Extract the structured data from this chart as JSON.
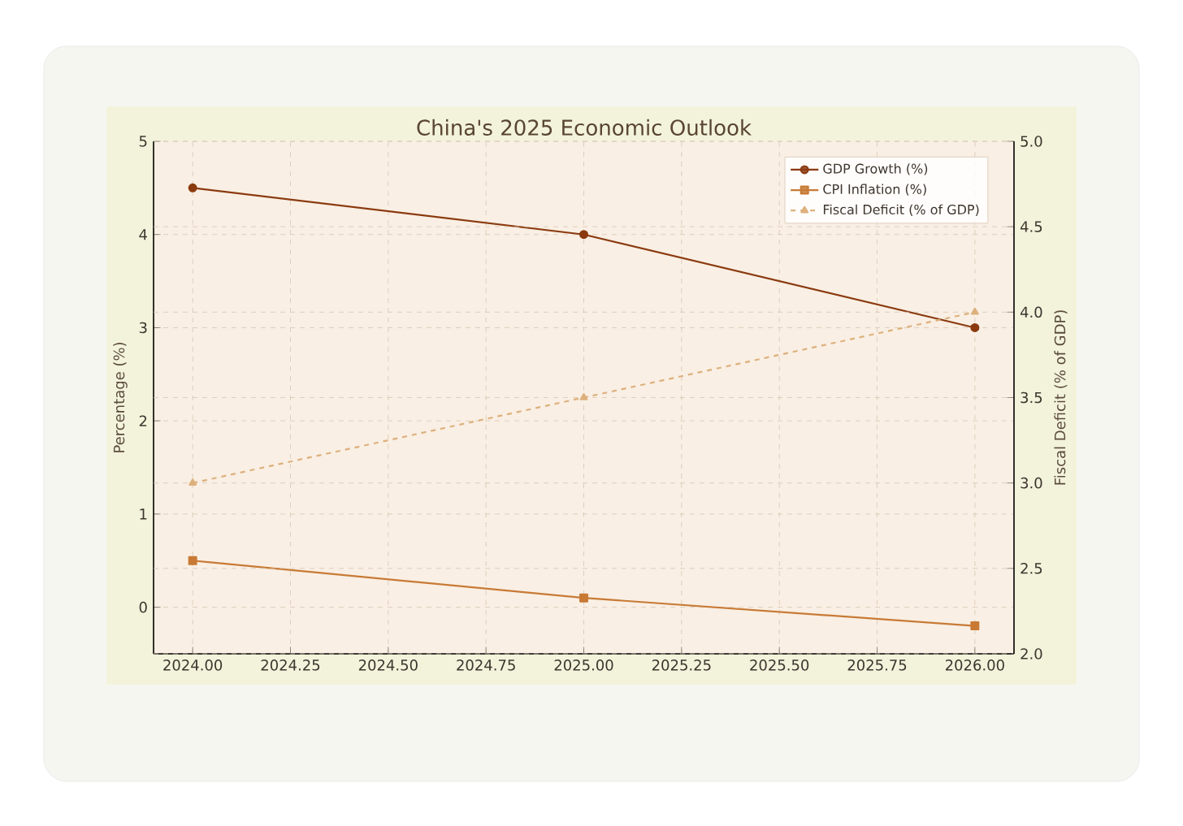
{
  "chart_data": {
    "type": "line",
    "title": "China's 2025 Economic Outlook",
    "ylabel": "Percentage (%)",
    "y2label": "Fiscal Deficit (% of GDP)",
    "x": [
      2024,
      2025,
      2026
    ],
    "series": [
      {
        "name": "GDP Growth (%)",
        "color": "#8b3a0f",
        "values": [
          4.5,
          4.0,
          3.0
        ],
        "marker": "circle",
        "line_style": "solid"
      },
      {
        "name": "CPI Inflation (%)",
        "color": "#c87a35",
        "values": [
          0.5,
          0.1,
          -0.2
        ],
        "marker": "square",
        "line_style": "solid"
      },
      {
        "name": "Fiscal Deficit (% of GDP)",
        "color": "#ddb07c",
        "values": [
          3.0,
          3.5,
          4.0
        ],
        "marker": "triangle",
        "line_style": "dashed",
        "axis": "y2"
      }
    ],
    "xlim": [
      2023.9,
      2026.1
    ],
    "xticks": [
      {
        "value": 2024,
        "label": "2024.00"
      },
      {
        "value": 2024.25,
        "label": "2024.25"
      },
      {
        "value": 2024.5,
        "label": "2024.50"
      },
      {
        "value": 2024.75,
        "label": "2024.75"
      },
      {
        "value": 2025,
        "label": "2025.00"
      },
      {
        "value": 2025.25,
        "label": "2025.25"
      },
      {
        "value": 2025.5,
        "label": "2025.50"
      },
      {
        "value": 2025.75,
        "label": "2025.75"
      },
      {
        "value": 2026,
        "label": "2026.00"
      }
    ],
    "ylim": [
      -0.5,
      5
    ],
    "yticks": [
      0,
      1,
      2,
      3,
      4,
      5
    ],
    "y2lim": [
      2,
      5
    ],
    "y2ticks": [
      {
        "value": 2,
        "label": "2.0"
      },
      {
        "value": 2.5,
        "label": "2.5"
      },
      {
        "value": 3,
        "label": "3.0"
      },
      {
        "value": 3.5,
        "label": "3.5"
      },
      {
        "value": 4,
        "label": "4.0"
      },
      {
        "value": 4.5,
        "label": "4.5"
      },
      {
        "value": 5,
        "label": "5.0"
      }
    ],
    "grid": true,
    "legend": "top right"
  }
}
